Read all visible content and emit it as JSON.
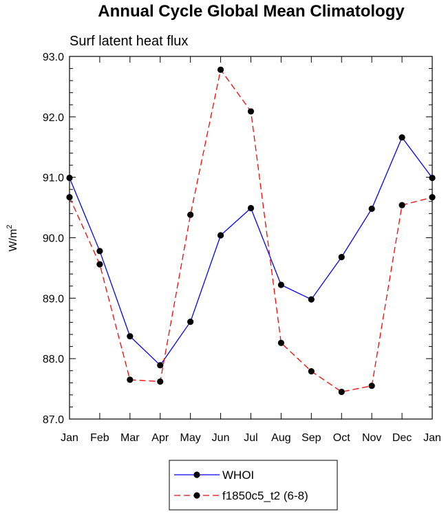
{
  "chart_data": {
    "type": "line",
    "title": "Annual Cycle Global Mean Climatology",
    "subtitle": "Surf latent heat flux",
    "ylabel": "W/m",
    "ylabel_superscript": "2",
    "xlabel": "",
    "categories": [
      "Jan",
      "Feb",
      "Mar",
      "Apr",
      "May",
      "Jun",
      "Jul",
      "Aug",
      "Sep",
      "Oct",
      "Nov",
      "Dec",
      "Jan"
    ],
    "ylim": [
      87.0,
      93.0
    ],
    "yticks": [
      "87.0",
      "88.0",
      "89.0",
      "90.0",
      "91.0",
      "92.0",
      "93.0"
    ],
    "legend_position": "bottom-center",
    "series": [
      {
        "name": "WHOI",
        "color": "#0000ff",
        "style": "solid",
        "values": [
          90.99,
          89.78,
          88.37,
          87.89,
          88.61,
          90.04,
          90.49,
          89.22,
          88.98,
          89.68,
          90.48,
          91.66,
          90.99
        ]
      },
      {
        "name": "f1850c5_t2 (6-8)",
        "color": "#ff0000",
        "style": "dashed",
        "values": [
          90.67,
          89.56,
          87.65,
          87.62,
          90.38,
          92.78,
          92.09,
          88.26,
          87.79,
          87.45,
          87.55,
          90.54,
          90.67
        ]
      }
    ]
  }
}
